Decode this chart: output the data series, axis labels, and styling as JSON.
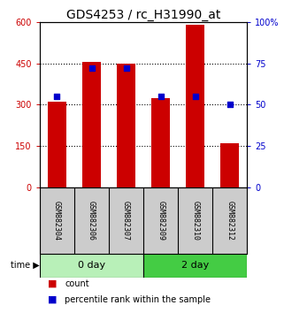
{
  "title": "GDS4253 / rc_H31990_at",
  "samples": [
    "GSM882304",
    "GSM882306",
    "GSM882307",
    "GSM882309",
    "GSM882310",
    "GSM882312"
  ],
  "counts": [
    310,
    455,
    450,
    325,
    590,
    160
  ],
  "percentiles": [
    55,
    72,
    72,
    55,
    55,
    50
  ],
  "groups": [
    {
      "label": "0 day",
      "indices": [
        0,
        1,
        2
      ],
      "color_light": "#b8f0b8",
      "color_dark": "#44cc44"
    },
    {
      "label": "2 day",
      "indices": [
        3,
        4,
        5
      ],
      "color_light": "#44cc44",
      "color_dark": "#44cc44"
    }
  ],
  "bar_color": "#cc0000",
  "percentile_color": "#0000cc",
  "left_ylim": [
    0,
    600
  ],
  "right_ylim": [
    0,
    100
  ],
  "left_yticks": [
    0,
    150,
    300,
    450,
    600
  ],
  "right_yticks": [
    0,
    25,
    50,
    75,
    100
  ],
  "right_yticklabels": [
    "0",
    "25",
    "50",
    "75",
    "100%"
  ],
  "left_yticklabels": [
    "0",
    "150",
    "300",
    "450",
    "600"
  ],
  "grid_values": [
    150,
    300,
    450
  ],
  "bar_width": 0.55,
  "background_color": "#ffffff",
  "label_box_color": "#cccccc",
  "title_fontsize": 10,
  "tick_fontsize": 7,
  "sample_fontsize": 6,
  "legend_fontsize": 7,
  "group_fontsize": 8
}
